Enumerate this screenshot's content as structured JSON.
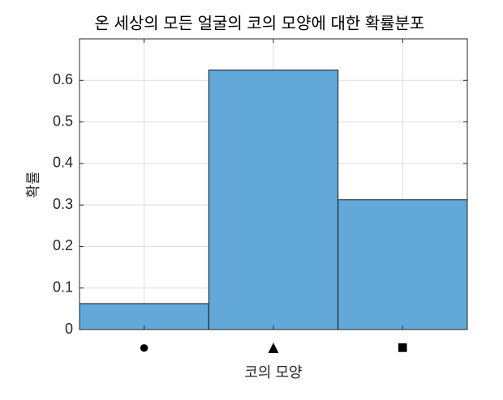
{
  "chart_data": {
    "type": "bar",
    "title": "온 세상의 모든 얼굴의 코의 모양에 대한 확률분포",
    "x_label": "코의 모양",
    "y_label": "확률",
    "categories": [
      "●",
      "▲",
      "■"
    ],
    "values": [
      0.0625,
      0.625,
      0.3125
    ],
    "color": "#62a8d8",
    "ylim": [
      0,
      0.7
    ],
    "yticks": [
      0,
      0.1,
      0.2,
      0.3,
      0.4,
      0.5,
      0.6
    ],
    "grid": true
  }
}
